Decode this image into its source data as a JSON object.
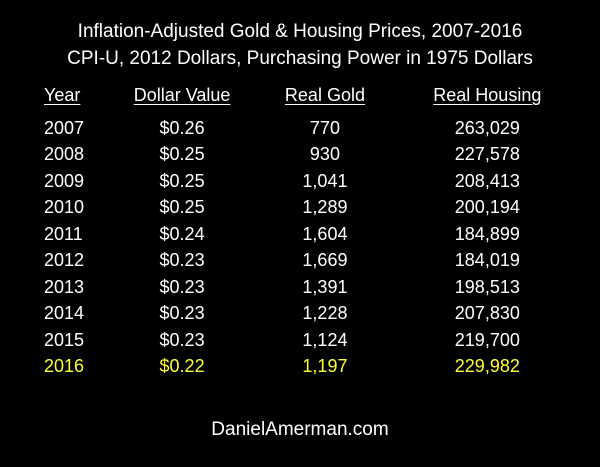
{
  "title": {
    "line1": "Inflation-Adjusted Gold & Housing Prices, 2007-2016",
    "line2": "CPI-U, 2012 Dollars, Purchasing Power in 1975 Dollars"
  },
  "colors": {
    "background": "#000000",
    "text": "#ffffff",
    "highlight": "#ffff33"
  },
  "chart_data": {
    "type": "table",
    "title": "Inflation-Adjusted Gold & Housing Prices, 2007-2016",
    "subtitle": "CPI-U, 2012 Dollars, Purchasing Power in 1975 Dollars",
    "columns": [
      "Year",
      "Dollar Value",
      "Real Gold",
      "Real Housing"
    ],
    "rows": [
      {
        "year": "2007",
        "dollar_value": "$0.26",
        "real_gold": "770",
        "real_housing": "263,029",
        "highlight": false
      },
      {
        "year": "2008",
        "dollar_value": "$0.25",
        "real_gold": "930",
        "real_housing": "227,578",
        "highlight": false
      },
      {
        "year": "2009",
        "dollar_value": "$0.25",
        "real_gold": "1,041",
        "real_housing": "208,413",
        "highlight": false
      },
      {
        "year": "2010",
        "dollar_value": "$0.25",
        "real_gold": "1,289",
        "real_housing": "200,194",
        "highlight": false
      },
      {
        "year": "2011",
        "dollar_value": "$0.24",
        "real_gold": "1,604",
        "real_housing": "184,899",
        "highlight": false
      },
      {
        "year": "2012",
        "dollar_value": "$0.23",
        "real_gold": "1,669",
        "real_housing": "184,019",
        "highlight": false
      },
      {
        "year": "2013",
        "dollar_value": "$0.23",
        "real_gold": "1,391",
        "real_housing": "198,513",
        "highlight": false
      },
      {
        "year": "2014",
        "dollar_value": "$0.23",
        "real_gold": "1,228",
        "real_housing": "207,830",
        "highlight": false
      },
      {
        "year": "2015",
        "dollar_value": "$0.23",
        "real_gold": "1,124",
        "real_housing": "219,700",
        "highlight": false
      },
      {
        "year": "2016",
        "dollar_value": "$0.22",
        "real_gold": "1,197",
        "real_housing": "229,982",
        "highlight": true
      }
    ]
  },
  "footer": "DanielAmerman.com"
}
